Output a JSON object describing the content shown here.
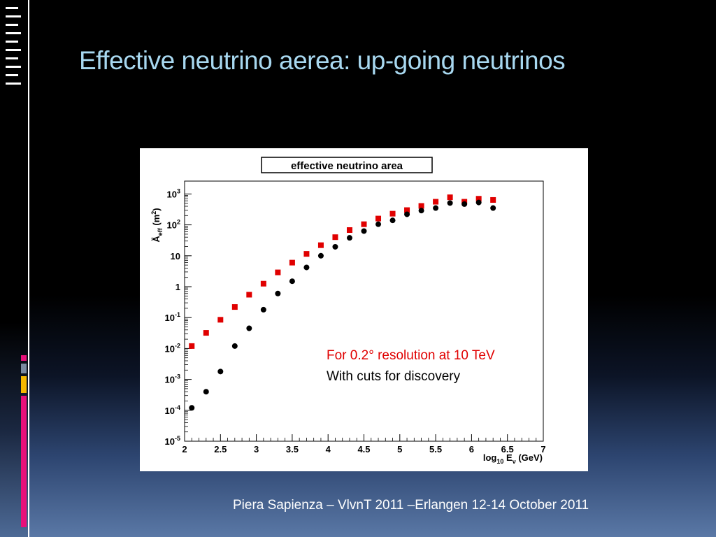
{
  "slide": {
    "title": "Effective neutrino aerea: up-going neutrinos",
    "footer": "Piera Sapienza – VlvnT 2011 –Erlangen 12-14 October 2011"
  },
  "annotation": {
    "line1": "For 0.2° resolution at 10 TeV",
    "line2": "With cuts for discovery",
    "line1_color": "#e00000",
    "line2_color": "#000000"
  },
  "chart_data": {
    "type": "scatter",
    "title": "effective neutrino area",
    "xlabel": "log10 Eν (GeV)",
    "ylabel": "Aνeff (m²)",
    "xlim": [
      2,
      7
    ],
    "ylim": [
      1e-05,
      2000
    ],
    "yscale": "log",
    "xticks": [
      "2",
      "2.5",
      "3",
      "3.5",
      "4",
      "4.5",
      "5",
      "5.5",
      "6",
      "6.5",
      "7"
    ],
    "yticks": [
      {
        "base": "10",
        "exp": "-5"
      },
      {
        "base": "10",
        "exp": "-4"
      },
      {
        "base": "10",
        "exp": "-3"
      },
      {
        "base": "10",
        "exp": "-2"
      },
      {
        "base": "10",
        "exp": "-1"
      },
      {
        "base": "1",
        "exp": ""
      },
      {
        "base": "10",
        "exp": ""
      },
      {
        "base": "10",
        "exp": "2"
      },
      {
        "base": "10",
        "exp": "3"
      }
    ],
    "grid": false,
    "series": [
      {
        "marker": "square",
        "color": "#e00000",
        "x": [
          2.1,
          2.3,
          2.5,
          2.7,
          2.9,
          3.1,
          3.3,
          3.5,
          3.7,
          3.9,
          4.1,
          4.3,
          4.5,
          4.7,
          4.9,
          5.1,
          5.3,
          5.5,
          5.7,
          5.9,
          6.1,
          6.3
        ],
        "y": [
          0.012,
          0.032,
          0.085,
          0.22,
          0.55,
          1.25,
          2.9,
          6.0,
          11.5,
          22,
          40,
          68,
          105,
          160,
          230,
          300,
          410,
          560,
          780,
          560,
          700,
          640
        ]
      },
      {
        "marker": "circle",
        "color": "#000000",
        "x": [
          2.1,
          2.3,
          2.5,
          2.7,
          2.9,
          3.1,
          3.3,
          3.5,
          3.7,
          3.9,
          4.1,
          4.3,
          4.5,
          4.7,
          4.9,
          5.1,
          5.3,
          5.5,
          5.7,
          5.9,
          6.1,
          6.3
        ],
        "y": [
          0.00012,
          0.0004,
          0.0018,
          0.012,
          0.045,
          0.18,
          0.6,
          1.5,
          4.2,
          10,
          19.5,
          38,
          63,
          105,
          140,
          220,
          290,
          350,
          510,
          470,
          530,
          350
        ]
      }
    ]
  }
}
